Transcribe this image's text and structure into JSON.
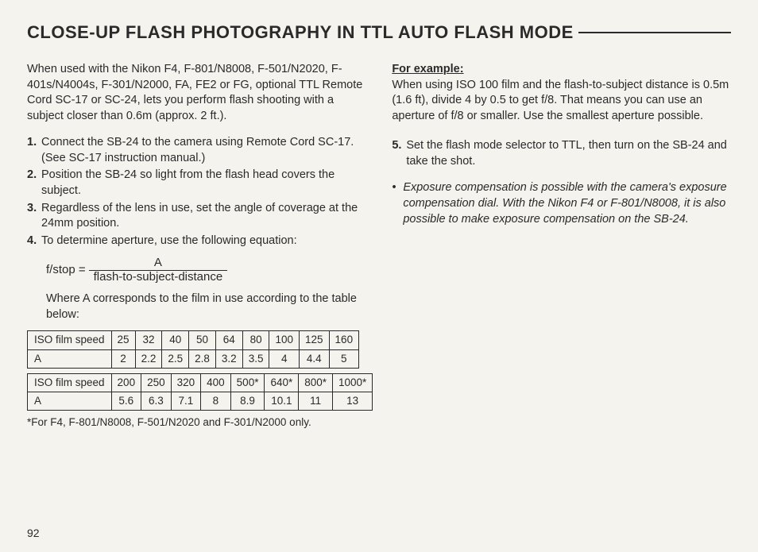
{
  "title": "CLOSE-UP FLASH PHOTOGRAPHY IN TTL AUTO FLASH MODE",
  "intro": "When used with the Nikon F4, F-801/N8008, F-501/N2020, F-401s/N4004s, F-301/N2000, FA, FE2 or FG, optional TTL Remote Cord SC-17 or SC-24, lets you perform flash shooting with a subject closer than 0.6m (approx. 2 ft.).",
  "steps": [
    "Connect the SB-24 to the camera using Remote Cord SC-17. (See SC-17 instruction manual.)",
    "Position the SB-24 so light from the flash head covers the subject.",
    "Regardless of the lens in use, set the angle of coverage at the 24mm position.",
    "To determine aperture, use the following equation:"
  ],
  "equation": {
    "lhs": "f/stop =",
    "numerator": "A",
    "denominator": "flash-to-subject-distance"
  },
  "where": "Where A corresponds to the film in use according to the table below:",
  "table1": {
    "label_iso": "ISO film speed",
    "label_a": "A",
    "iso": [
      "25",
      "32",
      "40",
      "50",
      "64",
      "80",
      "100",
      "125",
      "160"
    ],
    "a": [
      "2",
      "2.2",
      "2.5",
      "2.8",
      "3.2",
      "3.5",
      "4",
      "4.4",
      "5"
    ]
  },
  "table2": {
    "label_iso": "ISO film speed",
    "label_a": "A",
    "iso": [
      "200",
      "250",
      "320",
      "400",
      "500*",
      "640*",
      "800*",
      "1000*"
    ],
    "a": [
      "5.6",
      "6.3",
      "7.1",
      "8",
      "8.9",
      "10.1",
      "11",
      "13"
    ]
  },
  "footnote": "*For F4, F-801/N8008, F-501/N2020 and F-301/N2000 only.",
  "example_head": "For example:",
  "example_body": "When using ISO 100 film and the flash-to-subject distance is 0.5m (1.6 ft), divide 4 by 0.5 to get f/8. That means you can use an aperture of f/8 or smaller. Use the smallest aperture possible.",
  "step5_num": "5.",
  "step5": "Set the flash mode selector to TTL, then turn on the SB-24 and take the shot.",
  "note_bullet": "•",
  "note": "Exposure compensation is possible with the camera's exposure compensation dial. With the Nikon F4 or F-801/N8008, it is also possible to make exposure compensation on the SB-24.",
  "page_number": "92",
  "colors": {
    "bg": "#f5f3ee",
    "text": "#2a2a2a"
  }
}
